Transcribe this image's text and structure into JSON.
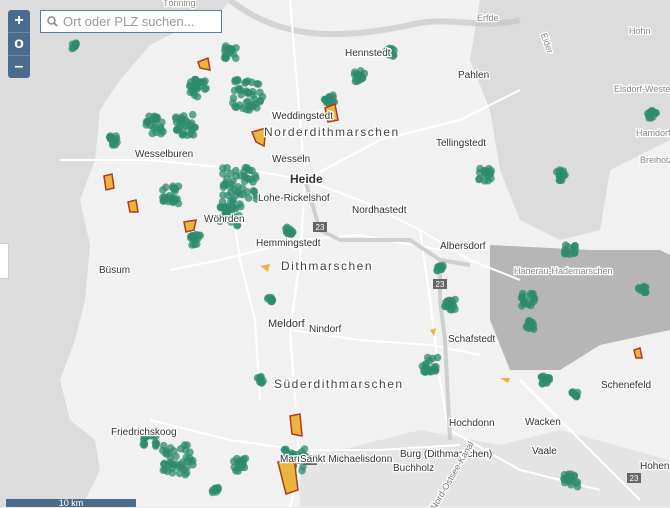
{
  "search": {
    "placeholder": "Ort oder PLZ suchen..."
  },
  "zoom": {
    "in_label": "+",
    "reset_label": "o",
    "out_label": "–"
  },
  "scale": {
    "label": "10 km"
  },
  "places": [
    {
      "name": "Hennstedt"
    },
    {
      "name": "Pahlen"
    },
    {
      "name": "Weddingstedt"
    },
    {
      "name": "Norderdithmarschen"
    },
    {
      "name": "Wesselburen"
    },
    {
      "name": "Wesseln"
    },
    {
      "name": "Heide"
    },
    {
      "name": "Tellingstedt"
    },
    {
      "name": "Lohe-Rickelshof"
    },
    {
      "name": "Nordhastedt"
    },
    {
      "name": "Wöhrden"
    },
    {
      "name": "Hemmingstedt"
    },
    {
      "name": "Albersdorf"
    },
    {
      "name": "Dithmarschen"
    },
    {
      "name": "Büsum"
    },
    {
      "name": "Hanerau-Hademarschen"
    },
    {
      "name": "Meldorf"
    },
    {
      "name": "Nindorf"
    },
    {
      "name": "Schafstedt"
    },
    {
      "name": "Süderdithmarschen"
    },
    {
      "name": "Schenefeld"
    },
    {
      "name": "Friedrichskoog"
    },
    {
      "name": "Hochdonn"
    },
    {
      "name": "Wacken"
    },
    {
      "name": "Vaale"
    },
    {
      "name": "Marne"
    },
    {
      "name": "Sankt Michaelisdonn"
    },
    {
      "name": "Burg (Dithmarschen)"
    },
    {
      "name": "Buchholz"
    },
    {
      "name": "Hohenlockstedt"
    },
    {
      "name": "Nord-Ostsee-Kanal"
    },
    {
      "name": "Erfde"
    },
    {
      "name": "Hohn"
    },
    {
      "name": "Elsdorf-Westermühlen"
    },
    {
      "name": "Hamdorf"
    },
    {
      "name": "Breiholz"
    },
    {
      "name": "Tönning"
    },
    {
      "name": "Eider"
    }
  ],
  "road_shields": [
    "23",
    "23",
    "23",
    "23"
  ],
  "colors": {
    "water": "#9ec6d8",
    "land": "#ececec",
    "cluster": "#2e8b6e",
    "area_fill": "#e9b53f",
    "area_outline": "#b43a1a",
    "outside": "#a7a7a7"
  }
}
